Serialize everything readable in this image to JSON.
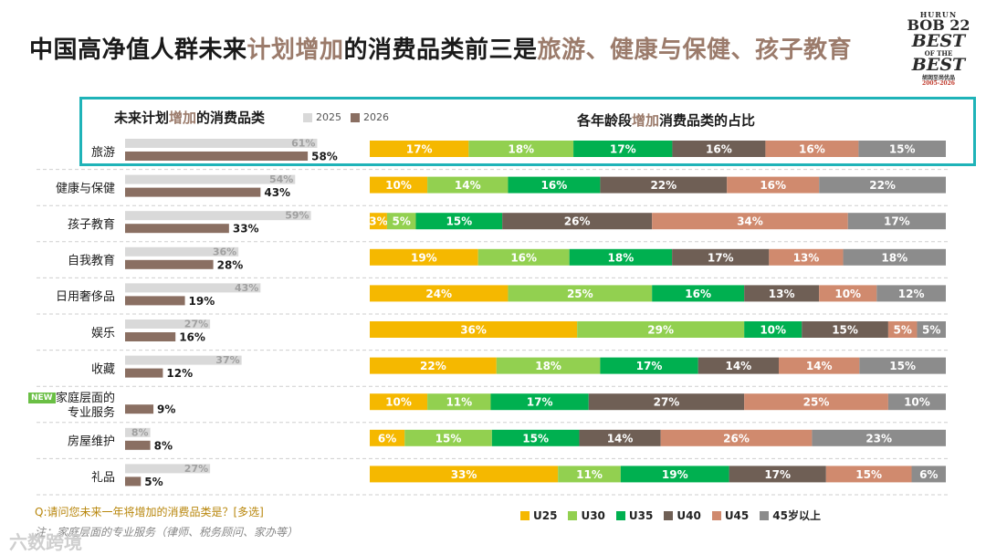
{
  "title": {
    "part1": "中国高净值人群未来",
    "part2": "计划增加",
    "part3": "的消费品类前三是",
    "part4": "旅游、健康与保健、孩子教育"
  },
  "logo": {
    "line1": "HURUN",
    "line2": "BOB 22",
    "line3": "BEST",
    "line4": "OF THE",
    "line5": "BEST",
    "line6": "胡润至尚优品",
    "line7": "2005-2026"
  },
  "colors": {
    "c2025": "#d9d9d9",
    "c2026": "#8a6f62",
    "teal": "#1fb3b8",
    "u25": "#f5b800",
    "u30": "#92d050",
    "u35": "#00b050",
    "u40": "#6f5f55",
    "u45": "#d08a6e",
    "u45plus": "#8c8c8c"
  },
  "chart_data": [
    {
      "type": "bar",
      "title": "未来计划增加的消费品类",
      "title_parts": [
        "未来计划",
        "增加",
        "的消费品类"
      ],
      "categories": [
        "旅游",
        "健康与保健",
        "孩子教育",
        "自我教育",
        "日用奢侈品",
        "娱乐",
        "收藏",
        "家庭层面的专业服务",
        "房屋维护",
        "礼品"
      ],
      "category_lines": [
        [
          "旅游"
        ],
        [
          "健康与保健"
        ],
        [
          "孩子教育"
        ],
        [
          "自我教育"
        ],
        [
          "日用奢侈品"
        ],
        [
          "娱乐"
        ],
        [
          "收藏"
        ],
        [
          "家庭层面的",
          "专业服务"
        ],
        [
          "房屋维护"
        ],
        [
          "礼品"
        ]
      ],
      "badge": "NEW",
      "series": [
        {
          "name": "2025",
          "values": [
            61,
            54,
            59,
            36,
            43,
            27,
            37,
            null,
            8,
            27
          ]
        },
        {
          "name": "2026",
          "values": [
            58,
            43,
            33,
            28,
            19,
            16,
            12,
            9,
            8,
            5
          ]
        }
      ],
      "unit": "%",
      "ylim": [
        0,
        70
      ]
    },
    {
      "type": "bar",
      "stacked": true,
      "title": "各年龄段增加消费品类的占比",
      "title_parts": [
        "各年龄段",
        "增加",
        "消费品类的占比"
      ],
      "categories": [
        "旅游",
        "健康与保健",
        "孩子教育",
        "自我教育",
        "日用奢侈品",
        "娱乐",
        "收藏",
        "家庭层面的专业服务",
        "房屋维护",
        "礼品"
      ],
      "series": [
        {
          "name": "U25",
          "values": [
            17,
            10,
            3,
            19,
            24,
            36,
            22,
            10,
            6,
            33
          ]
        },
        {
          "name": "U30",
          "values": [
            18,
            14,
            5,
            16,
            25,
            29,
            18,
            11,
            15,
            11
          ]
        },
        {
          "name": "U35",
          "values": [
            17,
            16,
            15,
            18,
            16,
            10,
            17,
            17,
            15,
            19
          ]
        },
        {
          "name": "U40",
          "values": [
            16,
            22,
            26,
            17,
            13,
            15,
            14,
            27,
            14,
            17
          ]
        },
        {
          "name": "U45",
          "values": [
            16,
            16,
            34,
            13,
            10,
            5,
            14,
            25,
            26,
            15
          ]
        },
        {
          "name": "45岁以上",
          "values": [
            15,
            22,
            17,
            18,
            12,
            5,
            15,
            10,
            23,
            6
          ]
        }
      ],
      "unit": "%"
    }
  ],
  "footer": {
    "question": "Q:请问您未来一年将增加的消费品类是？[多选]",
    "note": "注：家庭层面的专业服务（律师、税务顾问、家办等）",
    "watermark": "六数跨境"
  }
}
